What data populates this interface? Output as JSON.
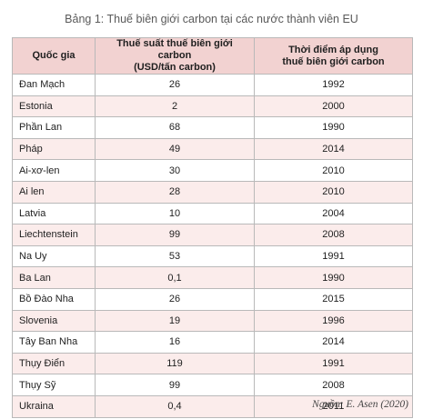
{
  "caption": "Bảng 1: Thuế biên giới carbon tại các nước thành viên EU",
  "headers": {
    "country": "Quốc gia",
    "rate": "Thuế suất thuế biên giới carbon\n(USD/tấn carbon)",
    "year": "Thời điểm áp dụng\nthuế biên giới carbon"
  },
  "rows": [
    {
      "country": "Đan Mạch",
      "rate": "26",
      "year": "1992"
    },
    {
      "country": "Estonia",
      "rate": "2",
      "year": "2000"
    },
    {
      "country": "Phần Lan",
      "rate": "68",
      "year": "1990"
    },
    {
      "country": "Pháp",
      "rate": "49",
      "year": "2014"
    },
    {
      "country": "Ai-xơ-len",
      "rate": "30",
      "year": "2010"
    },
    {
      "country": "Ai len",
      "rate": "28",
      "year": "2010"
    },
    {
      "country": "Latvia",
      "rate": "10",
      "year": "2004"
    },
    {
      "country": "Liechtenstein",
      "rate": "99",
      "year": "2008"
    },
    {
      "country": "Na Uy",
      "rate": "53",
      "year": "1991"
    },
    {
      "country": "Ba Lan",
      "rate": "0,1",
      "year": "1990"
    },
    {
      "country": "Bồ Đào Nha",
      "rate": "26",
      "year": "2015"
    },
    {
      "country": "Slovenia",
      "rate": "19",
      "year": "1996"
    },
    {
      "country": "Tây Ban Nha",
      "rate": "16",
      "year": "2014"
    },
    {
      "country": "Thụy Điển",
      "rate": "119",
      "year": "1991"
    },
    {
      "country": "Thụy Sỹ",
      "rate": "99",
      "year": "2008"
    },
    {
      "country": "Ukraina",
      "rate": "0,4",
      "year": "2011"
    }
  ],
  "source": "Nguồn: E. Asen (2020)",
  "colors": {
    "header_bg": "#f2d2d1",
    "stripe_bg": "#fbeceb",
    "border": "#b9b9b9"
  }
}
